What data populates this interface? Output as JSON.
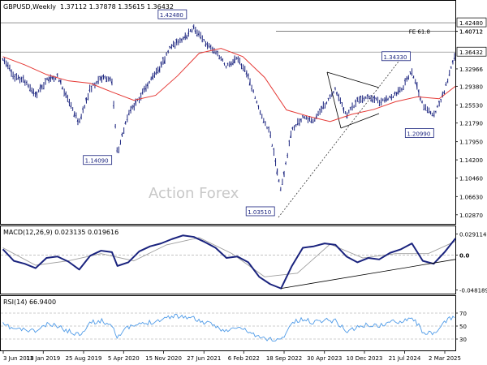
{
  "header": {
    "symbol": "GBPUSD,Weekly",
    "ohlc": "1.37112 1.37878 1.35615 1.36432"
  },
  "watermark": "Action Forex",
  "colors": {
    "price_bar": "#1a237e",
    "moving_average": "#e53935",
    "macd_line": "#1a237e",
    "signal_line": "#9e9e9e",
    "rsi_line": "#4f9be8",
    "price_tag_bg": "#ffffff",
    "grid_dash": "#9e9e9e",
    "axis": "#000000",
    "watermark": "#c8c8c8"
  },
  "chart_data": [
    {
      "type": "line",
      "panel": "price",
      "title": "GBPUSD,Weekly",
      "y_ticks": [
        "1.40712",
        "1.36432",
        "1.32966",
        "1.29380",
        "1.25530",
        "1.21790",
        "1.17950",
        "1.14200",
        "1.10460",
        "1.06630",
        "1.02870"
      ],
      "reference_levels": [
        {
          "label": "1.42480",
          "value": 1.4248
        },
        {
          "label": "FE 61.8",
          "value": 1.4071
        }
      ],
      "last_price_label": "1.36432",
      "last_price": 1.36432,
      "annotations": [
        {
          "label": "1.42480",
          "date": "2021-01",
          "value": 1.4248
        },
        {
          "label": "1.14090",
          "date": "2020-03",
          "value": 1.1409
        },
        {
          "label": "1.03510",
          "date": "2022-09",
          "value": 1.0351
        },
        {
          "label": "1.34330",
          "date": "2024-09",
          "value": 1.3433
        },
        {
          "label": "1.20990",
          "date": "2025-01",
          "value": 1.2099
        }
      ],
      "ylim": [
        1.02,
        1.445
      ],
      "series": [
        {
          "style": "bars",
          "x": [
            "2018-06",
            "2018-08",
            "2018-10",
            "2018-12",
            "2019-02",
            "2019-04",
            "2019-06",
            "2019-08",
            "2019-10",
            "2019-12",
            "2020-02",
            "2020-03",
            "2020-05",
            "2020-07",
            "2020-09",
            "2020-11",
            "2021-01",
            "2021-03",
            "2021-05",
            "2021-07",
            "2021-09",
            "2021-11",
            "2022-01",
            "2022-03",
            "2022-05",
            "2022-07",
            "2022-09",
            "2022-11",
            "2023-01",
            "2023-03",
            "2023-05",
            "2023-07",
            "2023-09",
            "2023-11",
            "2024-01",
            "2024-03",
            "2024-05",
            "2024-07",
            "2024-09",
            "2024-11",
            "2025-01",
            "2025-03",
            "2025-05"
          ],
          "values": [
            1.352,
            1.315,
            1.305,
            1.275,
            1.305,
            1.315,
            1.265,
            1.218,
            1.288,
            1.312,
            1.305,
            1.155,
            1.237,
            1.268,
            1.305,
            1.335,
            1.379,
            1.388,
            1.415,
            1.385,
            1.365,
            1.335,
            1.352,
            1.315,
            1.245,
            1.197,
            1.078,
            1.205,
            1.228,
            1.225,
            1.255,
            1.287,
            1.232,
            1.265,
            1.272,
            1.262,
            1.27,
            1.285,
            1.325,
            1.255,
            1.232,
            1.285,
            1.364
          ]
        },
        {
          "style": "moving_average",
          "x": [
            "2018-06",
            "2018-10",
            "2019-02",
            "2019-06",
            "2019-10",
            "2020-02",
            "2020-06",
            "2020-10",
            "2021-02",
            "2021-06",
            "2021-10",
            "2022-02",
            "2022-06",
            "2022-10",
            "2023-02",
            "2023-06",
            "2023-10",
            "2024-02",
            "2024-06",
            "2024-10",
            "2025-02",
            "2025-05"
          ],
          "values": [
            1.355,
            1.338,
            1.318,
            1.305,
            1.3,
            1.282,
            1.265,
            1.275,
            1.315,
            1.362,
            1.372,
            1.355,
            1.312,
            1.245,
            1.232,
            1.221,
            1.236,
            1.246,
            1.262,
            1.272,
            1.268,
            1.294
          ]
        }
      ]
    },
    {
      "type": "line",
      "panel": "macd",
      "title": "MACD(12,26,9) 0.023135 0.019616",
      "y_ticks": [
        "0.029114",
        "0.0",
        "-0.048189"
      ],
      "ylim": [
        -0.052,
        0.034
      ],
      "series": [
        {
          "style": "macd",
          "x": [
            "2018-06",
            "2018-08",
            "2018-10",
            "2018-12",
            "2019-02",
            "2019-04",
            "2019-06",
            "2019-08",
            "2019-10",
            "2019-12",
            "2020-02",
            "2020-03",
            "2020-05",
            "2020-07",
            "2020-09",
            "2020-11",
            "2021-01",
            "2021-03",
            "2021-05",
            "2021-07",
            "2021-09",
            "2021-11",
            "2022-01",
            "2022-03",
            "2022-05",
            "2022-07",
            "2022-09",
            "2022-11",
            "2023-01",
            "2023-03",
            "2023-05",
            "2023-07",
            "2023-09",
            "2023-11",
            "2024-01",
            "2024-03",
            "2024-05",
            "2024-07",
            "2024-09",
            "2024-11",
            "2025-01",
            "2025-03",
            "2025-05"
          ],
          "values": [
            0.008,
            -0.008,
            -0.012,
            -0.018,
            -0.004,
            -0.002,
            -0.009,
            -0.02,
            -0.001,
            0.006,
            0.004,
            -0.015,
            -0.01,
            0.005,
            0.012,
            0.016,
            0.022,
            0.027,
            0.025,
            0.018,
            0.01,
            -0.004,
            -0.002,
            -0.01,
            -0.03,
            -0.04,
            -0.046,
            -0.015,
            0.01,
            0.012,
            0.016,
            0.014,
            -0.002,
            -0.01,
            -0.004,
            -0.006,
            0.003,
            0.008,
            0.016,
            -0.008,
            -0.012,
            0.004,
            0.023
          ]
        },
        {
          "style": "signal",
          "x": [
            "2018-06",
            "2018-12",
            "2019-06",
            "2019-12",
            "2020-06",
            "2020-12",
            "2021-06",
            "2021-12",
            "2022-06",
            "2022-12",
            "2023-06",
            "2023-12",
            "2024-06",
            "2024-12",
            "2025-05"
          ],
          "values": [
            0.01,
            -0.014,
            -0.008,
            0.002,
            -0.008,
            0.014,
            0.024,
            0.002,
            -0.03,
            -0.025,
            0.015,
            -0.004,
            0.002,
            0.002,
            0.019
          ]
        },
        {
          "style": "trendline",
          "x": [
            "2022-09",
            "2025-05"
          ],
          "values": [
            -0.046,
            -0.006
          ]
        }
      ]
    },
    {
      "type": "line",
      "panel": "rsi",
      "title": "RSI(14) 66.9400",
      "y_ticks": [
        "70",
        "50",
        "30"
      ],
      "ylim": [
        15,
        90
      ],
      "series": [
        {
          "style": "rsi",
          "x": [
            "2018-06",
            "2018-08",
            "2018-10",
            "2018-12",
            "2019-02",
            "2019-04",
            "2019-06",
            "2019-08",
            "2019-10",
            "2019-12",
            "2020-02",
            "2020-03",
            "2020-05",
            "2020-07",
            "2020-09",
            "2020-11",
            "2021-01",
            "2021-03",
            "2021-05",
            "2021-07",
            "2021-09",
            "2021-11",
            "2022-01",
            "2022-03",
            "2022-05",
            "2022-07",
            "2022-09",
            "2022-11",
            "2023-01",
            "2023-03",
            "2023-05",
            "2023-07",
            "2023-09",
            "2023-11",
            "2024-01",
            "2024-03",
            "2024-05",
            "2024-07",
            "2024-09",
            "2024-11",
            "2025-01",
            "2025-03",
            "2025-05"
          ],
          "values": [
            52,
            46,
            44,
            42,
            52,
            50,
            42,
            37,
            55,
            58,
            52,
            34,
            48,
            52,
            56,
            60,
            66,
            65,
            62,
            55,
            50,
            42,
            48,
            42,
            32,
            30,
            28,
            55,
            60,
            56,
            60,
            58,
            42,
            48,
            52,
            50,
            56,
            58,
            64,
            42,
            36,
            56,
            67
          ]
        }
      ]
    }
  ],
  "x_axis": {
    "tick_labels": [
      "3 Jun 2018",
      "13 Jan 2019",
      "25 Aug 2019",
      "5 Apr 2020",
      "15 Nov 2020",
      "27 Jun 2021",
      "6 Feb 2022",
      "18 Sep 2022",
      "30 Apr 2023",
      "10 Dec 2023",
      "21 Jul 2024",
      "2 Mar 2025"
    ],
    "tick_dates": [
      "2018-06-03",
      "2019-01-13",
      "2019-08-25",
      "2020-04-05",
      "2020-11-15",
      "2021-06-27",
      "2022-02-06",
      "2022-09-18",
      "2023-04-30",
      "2023-12-10",
      "2024-07-21",
      "2025-03-02"
    ]
  }
}
